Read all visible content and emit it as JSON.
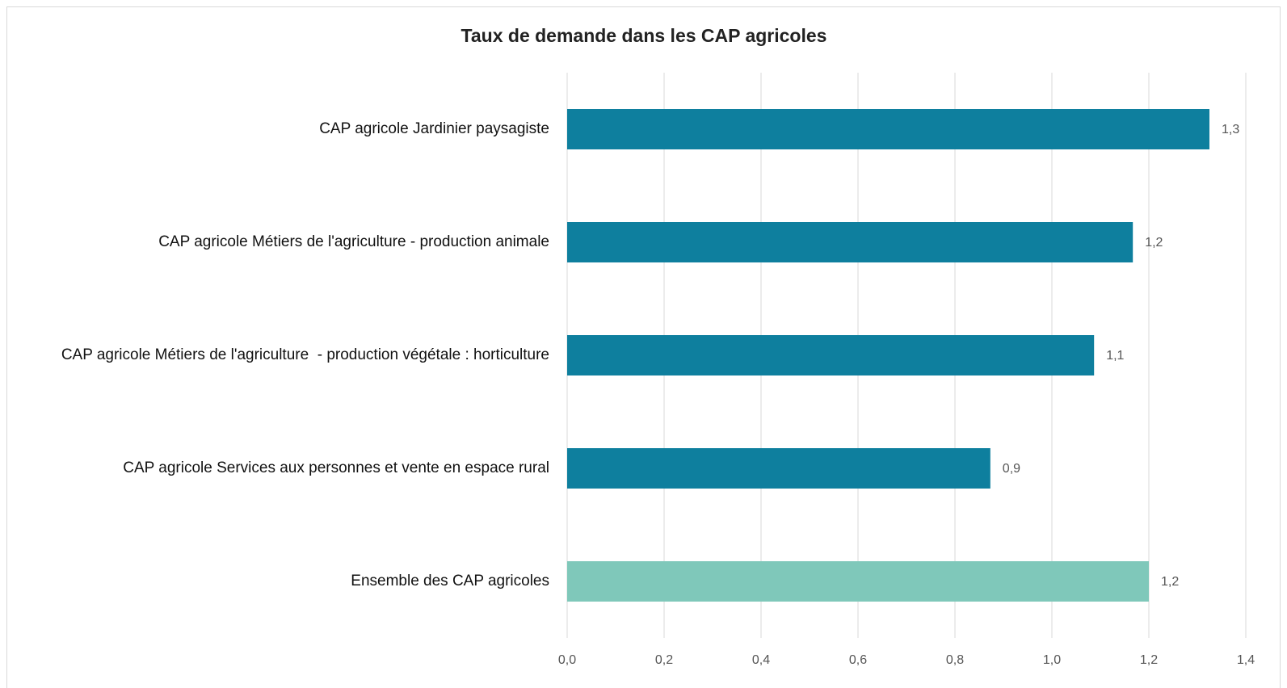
{
  "chart_data": {
    "type": "bar",
    "orientation": "horizontal",
    "title": "Taux de demande dans les CAP agricoles",
    "categories": [
      "CAP agricole Jardinier paysagiste",
      "CAP agricole Métiers de l'agriculture - production animale",
      "CAP agricole Métiers de l'agriculture  - production végétale : horticulture",
      "CAP agricole Services aux personnes et vente en espace rural",
      "Ensemble des CAP agricoles"
    ],
    "values": [
      1.325,
      1.167,
      1.087,
      0.873,
      1.2
    ],
    "value_labels": [
      "1,3",
      "1,2",
      "1,1",
      "0,9",
      "1,2"
    ],
    "colors": [
      "#0e7f9e",
      "#0e7f9e",
      "#0e7f9e",
      "#0e7f9e",
      "#7fc8ba"
    ],
    "xlim": [
      0,
      1.4
    ],
    "xticks": [
      {
        "value": 0,
        "label": "0,0"
      },
      {
        "value": 0.2,
        "label": "0,2"
      },
      {
        "value": 0.4,
        "label": "0,4"
      },
      {
        "value": 0.6,
        "label": "0,6"
      },
      {
        "value": 0.8,
        "label": "0,8"
      },
      {
        "value": 1.0,
        "label": "1,0"
      },
      {
        "value": 1.2,
        "label": "1,2"
      },
      {
        "value": 1.4,
        "label": "1,4"
      }
    ],
    "grid": true
  }
}
